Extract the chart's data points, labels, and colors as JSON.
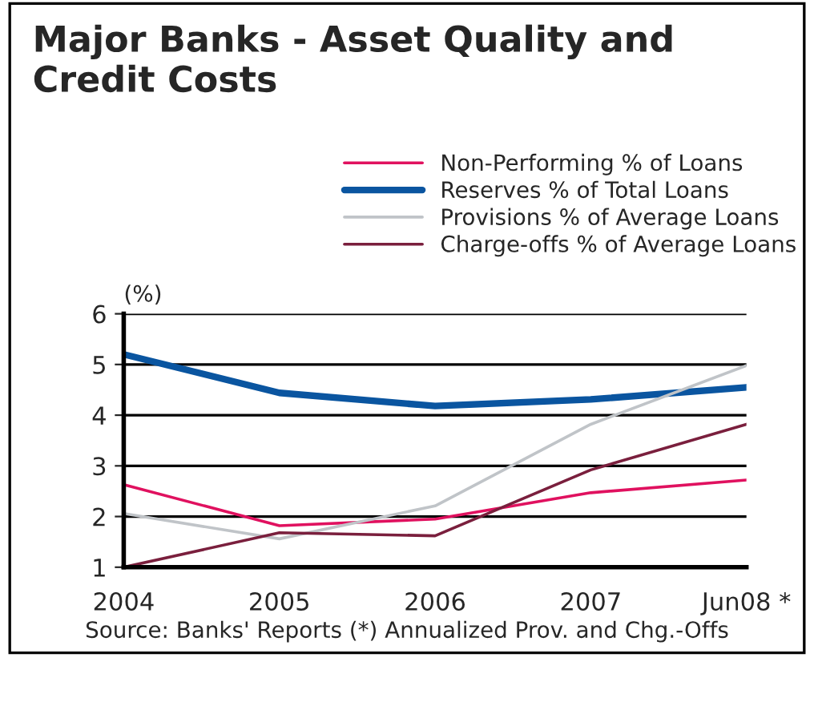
{
  "chart_data": {
    "type": "line",
    "title": "Major Banks - Asset Quality and\nCredit Costs",
    "ylabel": "(%)",
    "categories": [
      "2004",
      "2005",
      "2006",
      "2007",
      "Jun08 *"
    ],
    "series": [
      {
        "name": "Non-Performing % of Loans",
        "color": "#e0115f",
        "values": [
          2.63,
          1.82,
          1.95,
          2.47,
          2.72
        ]
      },
      {
        "name": "Reserves % of Total Loans",
        "color": "#0a55a0",
        "values": [
          5.2,
          4.44,
          4.18,
          4.31,
          4.55
        ]
      },
      {
        "name": "Provisions % of Average Loans",
        "color": "#c0c4c8",
        "values": [
          2.06,
          1.56,
          2.21,
          3.82,
          4.98
        ]
      },
      {
        "name": "Charge-offs % of Average Loans",
        "color": "#7a1f3d",
        "values": [
          1.0,
          1.68,
          1.62,
          2.92,
          3.82
        ]
      }
    ],
    "ylim": [
      1,
      6
    ],
    "yticks": [
      1,
      2,
      3,
      4,
      5,
      6
    ],
    "grid": "y",
    "legend": "top right",
    "marker": "none",
    "line_style": "solid",
    "annotations": [
      "Source: Banks' Reports (*) Annualized Prov. and Chg.-Offs"
    ]
  }
}
